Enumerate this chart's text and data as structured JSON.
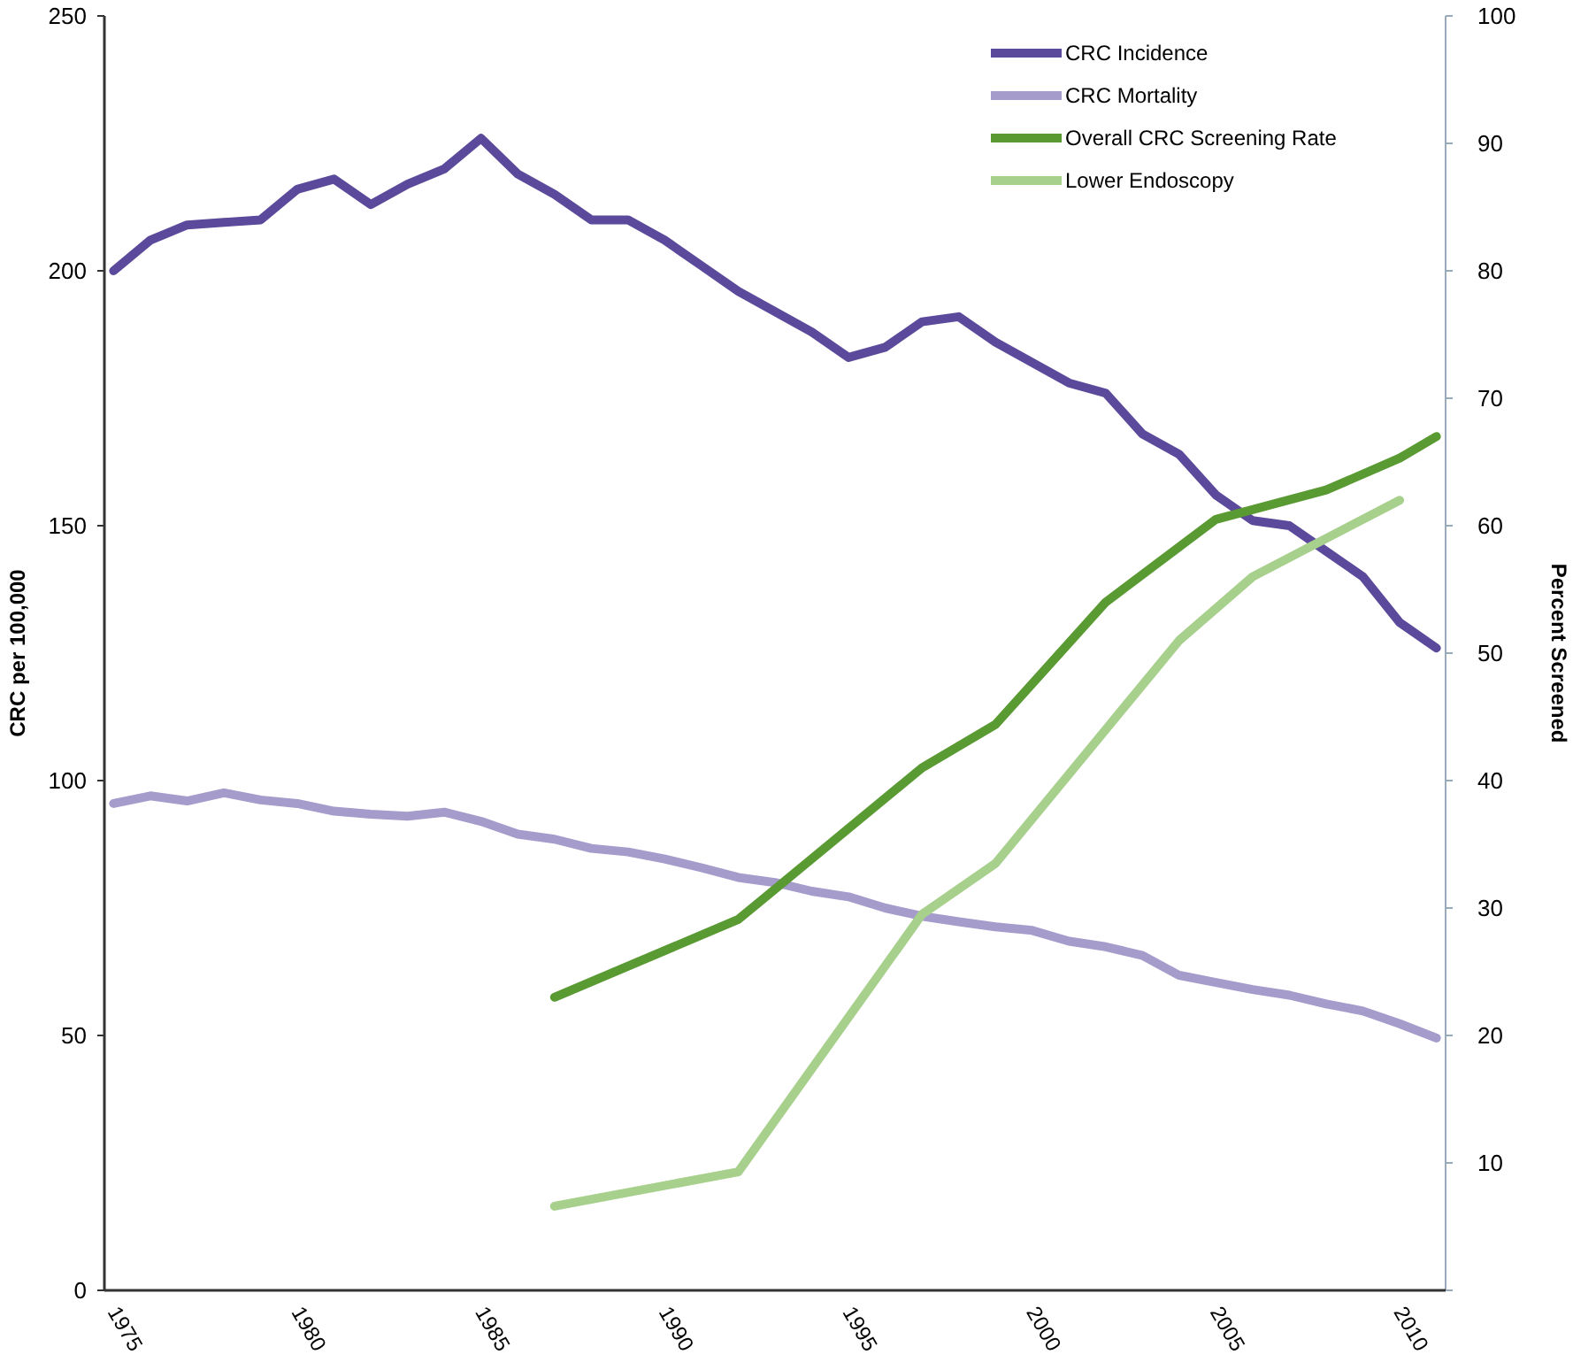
{
  "chart_data": {
    "type": "line",
    "ylabel": "CRC per 100,000",
    "y2label": "Percent Screened",
    "xlim": [
      1974.75,
      2011.25
    ],
    "xticks": [
      1975,
      1980,
      1985,
      1990,
      1995,
      2000,
      2005,
      2010
    ],
    "ylim": [
      0,
      250
    ],
    "yticks": [
      0,
      50,
      100,
      150,
      200,
      250
    ],
    "y2lim": [
      0,
      100
    ],
    "y2ticks": [
      {
        "value": 0,
        "label": null
      },
      10,
      20,
      30,
      40,
      50,
      60,
      70,
      80,
      90,
      100
    ],
    "grid": false,
    "legend": "top right",
    "marker": "none",
    "line_style": "solid",
    "x": [
      1975,
      1976,
      1977,
      1978,
      1979,
      1980,
      1981,
      1982,
      1983,
      1984,
      1985,
      1986,
      1987,
      1988,
      1989,
      1990,
      1991,
      1992,
      1993,
      1994,
      1995,
      1996,
      1997,
      1998,
      1999,
      2000,
      2001,
      2002,
      2003,
      2004,
      2005,
      2006,
      2007,
      2008,
      2009,
      2010,
      2011
    ],
    "series": [
      {
        "name": "CRC Incidence",
        "color": "#5b4a9b",
        "values": [
          200,
          206,
          209,
          209.5,
          210,
          216,
          218,
          213,
          217,
          220,
          226,
          219,
          215,
          210,
          210,
          206,
          201,
          196,
          192,
          188,
          183,
          185,
          190,
          191,
          186,
          182,
          178,
          176,
          168,
          164,
          156,
          151,
          150,
          145,
          140,
          131,
          126
        ]
      },
      {
        "name": "CRC Mortality",
        "color": "#a59ccc",
        "values": [
          95.5,
          97,
          96,
          97.6,
          96.2,
          95.5,
          94,
          93.4,
          93,
          93.8,
          92,
          89.5,
          88.5,
          86.7,
          86,
          84.6,
          82.9,
          81,
          80,
          78.3,
          77.2,
          75,
          73.4,
          72.3,
          71.3,
          70.6,
          68.5,
          67.4,
          65.7,
          61.8,
          60.4,
          59,
          57.9,
          56.2,
          54.8,
          52.3,
          49.5
        ]
      },
      {
        "name": "Overall CRC Screening Rate",
        "color": "#5a9a32",
        "axis": "y2",
        "x": [
          1987,
          1992,
          1997,
          1999,
          2002,
          2005,
          2008,
          2010,
          2011
        ],
        "values": [
          23,
          29.1,
          41,
          44.4,
          54,
          60.5,
          62.8,
          65.3,
          67
        ]
      },
      {
        "name": "Lower Endoscopy",
        "color": "#a8d08d",
        "axis": "y2",
        "x": [
          1987,
          1992,
          1997,
          1999,
          2002,
          2004,
          2006,
          2008,
          2010
        ],
        "values": [
          6.6,
          9.3,
          29.5,
          33.5,
          44,
          51,
          56,
          59,
          62
        ]
      }
    ]
  }
}
